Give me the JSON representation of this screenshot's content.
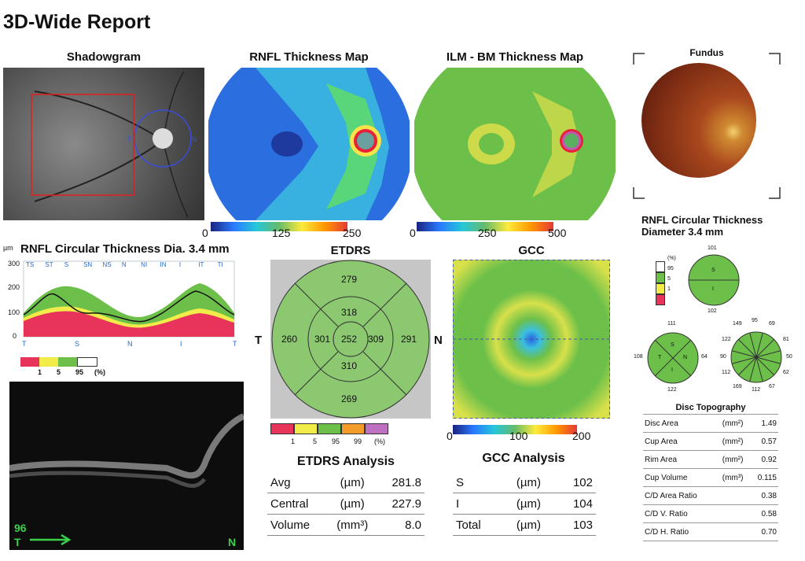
{
  "report_title": "3D-Wide Report",
  "shadowgram": {
    "title": "Shadowgram",
    "label_t": "T",
    "label_n": "N"
  },
  "rnfl_map": {
    "title": "RNFL Thickness Map",
    "scale": [
      "0",
      "125",
      "250"
    ]
  },
  "ilm_map": {
    "title": "ILM - BM Thickness Map",
    "scale": [
      "0",
      "250",
      "500"
    ]
  },
  "fundus": {
    "title": "Fundus"
  },
  "rnfl_circ": {
    "title": "RNFL Circular Thickness Dia. 3.4 mm",
    "unit": "µm",
    "y_ticks": [
      "300",
      "200",
      "100",
      "0"
    ],
    "sectors": [
      "TS",
      "ST",
      "S",
      "SN",
      "NS",
      "N",
      "NI",
      "IN",
      "I",
      "IT",
      "TI"
    ],
    "x_labels": [
      "T",
      "S",
      "N",
      "I",
      "T"
    ],
    "legend": [
      "1",
      "5",
      "95",
      "(%)"
    ]
  },
  "etdrs": {
    "title": "ETDRS",
    "outer_superior": "279",
    "inner_superior": "318",
    "center": "252",
    "inner_temporal": "301",
    "inner_nasal": "309",
    "outer_temporal": "260",
    "outer_nasal": "291",
    "inner_inferior": "310",
    "outer_inferior": "269",
    "side_t": "T",
    "side_n": "N",
    "legend": [
      "1",
      "5",
      "95",
      "99",
      "(%)"
    ]
  },
  "gcc": {
    "title": "GCC",
    "scale": [
      "0",
      "100",
      "200"
    ]
  },
  "rnfl_circ_right": {
    "title_line1": "RNFL Circular Thickness",
    "title_line2": "Diameter 3.4 mm",
    "legend": [
      "(%)",
      "95",
      "5",
      "1"
    ],
    "two": {
      "top": "101",
      "bottom": "102",
      "s": "S",
      "i": "I"
    },
    "four": {
      "top": "111",
      "left": "108",
      "right": "64",
      "bottom": "122",
      "s": "S",
      "t": "T",
      "n": "N",
      "i": "I"
    },
    "twelve": {
      "v1": "149",
      "v2": "95",
      "v3": "69",
      "v4": "122",
      "v5": "81",
      "v6": "90",
      "v7": "50",
      "v8": "112",
      "v9": "62",
      "v10": "169",
      "v11": "112",
      "v12": "67"
    }
  },
  "etdrs_analysis": {
    "title": "ETDRS Analysis",
    "rows": [
      {
        "label": "Avg",
        "unit": "(µm)",
        "value": "281.8"
      },
      {
        "label": "Central",
        "unit": "(µm)",
        "value": "227.9"
      },
      {
        "label": "Volume",
        "unit": "(mm³)",
        "value": "8.0"
      }
    ]
  },
  "gcc_analysis": {
    "title": "GCC Analysis",
    "rows": [
      {
        "label": "S",
        "unit": "(µm)",
        "value": "102"
      },
      {
        "label": "I",
        "unit": "(µm)",
        "value": "104"
      },
      {
        "label": "Total",
        "unit": "(µm)",
        "value": "103"
      }
    ]
  },
  "disc_topography": {
    "title": "Disc Topography",
    "rows": [
      {
        "label": "Disc Area",
        "unit": "(mm²)",
        "value": "1.49"
      },
      {
        "label": "Cup Area",
        "unit": "(mm²)",
        "value": "0.57"
      },
      {
        "label": "Rim Area",
        "unit": "(mm²)",
        "value": "0.92"
      },
      {
        "label": "Cup Volume",
        "unit": "(mm³)",
        "value": "0.115"
      },
      {
        "label": "C/D Area Ratio",
        "unit": "",
        "value": "0.38"
      },
      {
        "label": "C/D V. Ratio",
        "unit": "",
        "value": "0.58"
      },
      {
        "label": "C/D H. Ratio",
        "unit": "",
        "value": "0.70"
      }
    ]
  },
  "bscan": {
    "slice": "96",
    "label_t": "T",
    "label_n": "N"
  },
  "colors": {
    "normal": "#6cc04a",
    "borderline": "#f2ec4a",
    "outside": "#e8345a",
    "super": "#ffffff"
  }
}
